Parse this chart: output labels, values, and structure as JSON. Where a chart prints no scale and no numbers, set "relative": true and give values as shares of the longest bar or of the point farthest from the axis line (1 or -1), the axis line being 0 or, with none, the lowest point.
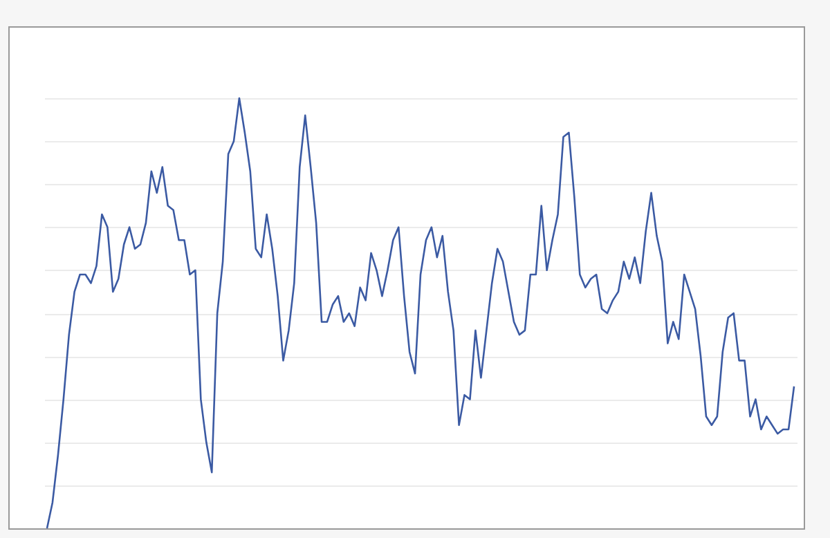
{
  "chart_data": {
    "type": "line",
    "relative": true,
    "grid": "y",
    "tick_labels": false,
    "categories": [
      null,
      null,
      null,
      null,
      null,
      null,
      null,
      null,
      null,
      null,
      null,
      null,
      null,
      null,
      null,
      null,
      null,
      null,
      null,
      null,
      null,
      null,
      null,
      null,
      null,
      null,
      null,
      null,
      null,
      null,
      null,
      null,
      null,
      null,
      null,
      null,
      null,
      null,
      null,
      null,
      null,
      null,
      null,
      null,
      null,
      null,
      null,
      null,
      null,
      null,
      null,
      null,
      null,
      null,
      null,
      null,
      null,
      null,
      null,
      null,
      null,
      null,
      null,
      null,
      null,
      null,
      null,
      null,
      null,
      null,
      null,
      null,
      null,
      null,
      null,
      null,
      null,
      null,
      null,
      null,
      null,
      null,
      null,
      null,
      null,
      null,
      null,
      null,
      null,
      null,
      null,
      null,
      null,
      null,
      null,
      null,
      null,
      null,
      null,
      null,
      null,
      null,
      null,
      null,
      null,
      null,
      null,
      null,
      null,
      null,
      null,
      null,
      null,
      null,
      null,
      null,
      null,
      null,
      null,
      null,
      null,
      null,
      null,
      null,
      null,
      null,
      null,
      null,
      null,
      null,
      null,
      null,
      null,
      null,
      null,
      null,
      null
    ],
    "series": [
      {
        "color": "#3b5aa3",
        "values": [
          0.0,
          0.06,
          0.17,
          0.3,
          0.45,
          0.55,
          0.59,
          0.59,
          0.57,
          0.61,
          0.73,
          0.7,
          0.55,
          0.58,
          0.66,
          0.7,
          0.65,
          0.66,
          0.71,
          0.83,
          0.78,
          0.84,
          0.75,
          0.74,
          0.67,
          0.67,
          0.59,
          0.6,
          0.3,
          0.2,
          0.13,
          0.5,
          0.62,
          0.87,
          0.9,
          1.0,
          0.92,
          0.83,
          0.65,
          0.63,
          0.73,
          0.65,
          0.54,
          0.39,
          0.46,
          0.57,
          0.84,
          0.96,
          0.84,
          0.71,
          0.48,
          0.48,
          0.52,
          0.54,
          0.48,
          0.5,
          0.47,
          0.56,
          0.53,
          0.64,
          0.6,
          0.54,
          0.6,
          0.67,
          0.7,
          0.54,
          0.41,
          0.36,
          0.59,
          0.67,
          0.7,
          0.63,
          0.68,
          0.55,
          0.46,
          0.24,
          0.31,
          0.3,
          0.46,
          0.35,
          0.46,
          0.57,
          0.65,
          0.62,
          0.55,
          0.48,
          0.45,
          0.46,
          0.59,
          0.59,
          0.75,
          0.6,
          0.67,
          0.73,
          0.91,
          0.92,
          0.77,
          0.59,
          0.56,
          0.58,
          0.59,
          0.51,
          0.5,
          0.53,
          0.55,
          0.62,
          0.58,
          0.63,
          0.57,
          0.69,
          0.78,
          0.68,
          0.62,
          0.43,
          0.48,
          0.44,
          0.59,
          0.55,
          0.51,
          0.4,
          0.26,
          0.24,
          0.26,
          0.41,
          0.49,
          0.5,
          0.39,
          0.39,
          0.26,
          0.3,
          0.23,
          0.26,
          0.24,
          0.22,
          0.23,
          0.23,
          0.33
        ]
      }
    ]
  }
}
